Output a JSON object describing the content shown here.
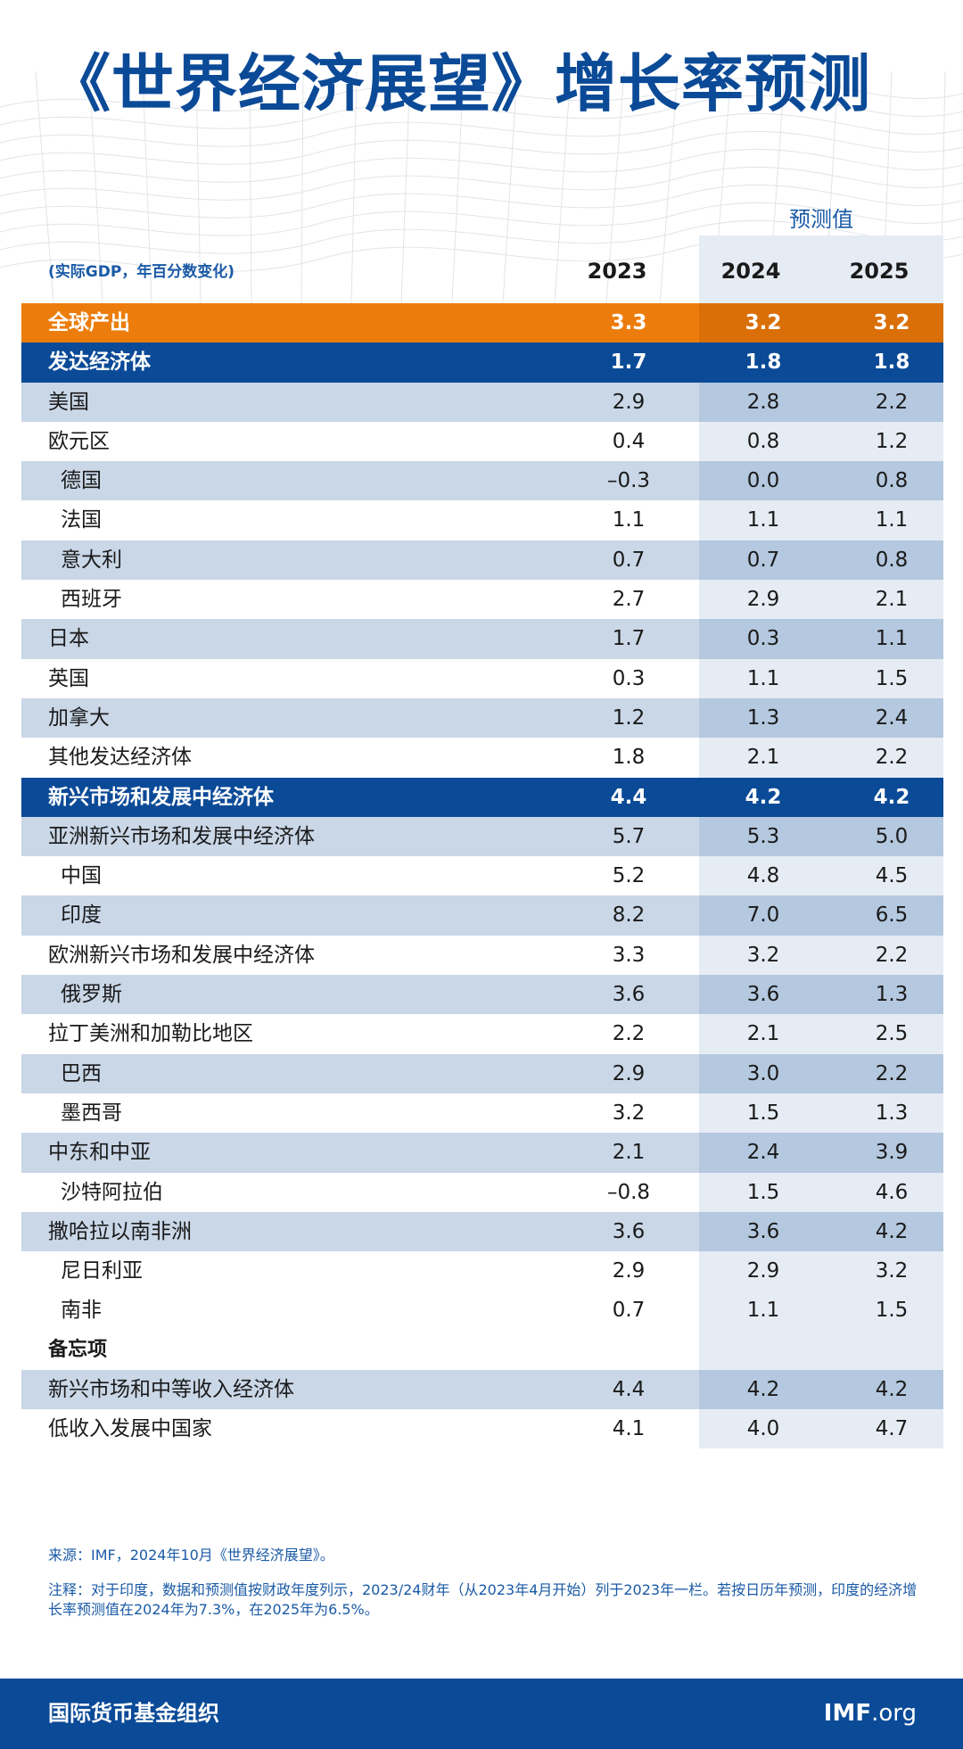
{
  "title": "《世界经济展望》增长率预测",
  "forecast_label": "预测值",
  "units_label": "(实际GDP，年百分数变化)",
  "years": [
    "2023",
    "2024",
    "2025"
  ],
  "rows": [
    {
      "name": "全球产出",
      "v2023": "3.3",
      "v2024": "3.2",
      "v2025": "3.2"
    },
    {
      "name": "发达经济体",
      "v2023": "1.7",
      "v2024": "1.8",
      "v2025": "1.8"
    },
    {
      "name": "美国",
      "v2023": "2.9",
      "v2024": "2.8",
      "v2025": "2.2"
    },
    {
      "name": "欧元区",
      "v2023": "0.4",
      "v2024": "0.8",
      "v2025": "1.2"
    },
    {
      "name": "德国",
      "v2023": "–0.3",
      "v2024": "0.0",
      "v2025": "0.8"
    },
    {
      "name": "法国",
      "v2023": "1.1",
      "v2024": "1.1",
      "v2025": "1.1"
    },
    {
      "name": "意大利",
      "v2023": "0.7",
      "v2024": "0.7",
      "v2025": "0.8"
    },
    {
      "name": "西班牙",
      "v2023": "2.7",
      "v2024": "2.9",
      "v2025": "2.1"
    },
    {
      "name": "日本",
      "v2023": "1.7",
      "v2024": "0.3",
      "v2025": "1.1"
    },
    {
      "name": "英国",
      "v2023": "0.3",
      "v2024": "1.1",
      "v2025": "1.5"
    },
    {
      "name": "加拿大",
      "v2023": "1.2",
      "v2024": "1.3",
      "v2025": "2.4"
    },
    {
      "name": "其他发达经济体",
      "v2023": "1.8",
      "v2024": "2.1",
      "v2025": "2.2"
    },
    {
      "name": "新兴市场和发展中经济体",
      "v2023": "4.4",
      "v2024": "4.2",
      "v2025": "4.2"
    },
    {
      "name": "亚洲新兴市场和发展中经济体",
      "v2023": "5.7",
      "v2024": "5.3",
      "v2025": "5.0"
    },
    {
      "name": "中国",
      "v2023": "5.2",
      "v2024": "4.8",
      "v2025": "4.5"
    },
    {
      "name": "印度",
      "v2023": "8.2",
      "v2024": "7.0",
      "v2025": "6.5"
    },
    {
      "name": "欧洲新兴市场和发展中经济体",
      "v2023": "3.3",
      "v2024": "3.2",
      "v2025": "2.2"
    },
    {
      "name": "俄罗斯",
      "v2023": "3.6",
      "v2024": "3.6",
      "v2025": "1.3"
    },
    {
      "name": "拉丁美洲和加勒比地区",
      "v2023": "2.2",
      "v2024": "2.1",
      "v2025": "2.5"
    },
    {
      "name": "巴西",
      "v2023": "2.9",
      "v2024": "3.0",
      "v2025": "2.2"
    },
    {
      "name": "墨西哥",
      "v2023": "3.2",
      "v2024": "1.5",
      "v2025": "1.3"
    },
    {
      "name": "中东和中亚",
      "v2023": "2.1",
      "v2024": "2.4",
      "v2025": "3.9"
    },
    {
      "name": "沙特阿拉伯",
      "v2023": "–0.8",
      "v2024": "1.5",
      "v2025": "4.6"
    },
    {
      "name": "撒哈拉以南非洲",
      "v2023": "3.6",
      "v2024": "3.6",
      "v2025": "4.2"
    },
    {
      "name": "尼日利亚",
      "v2023": "2.9",
      "v2024": "2.9",
      "v2025": "3.2"
    },
    {
      "name": "南非",
      "v2023": "0.7",
      "v2024": "1.1",
      "v2025": "1.5"
    },
    {
      "name": "备忘项",
      "v2023": "",
      "v2024": "",
      "v2025": ""
    },
    {
      "name": "新兴市场和中等收入经济体",
      "v2023": "4.4",
      "v2024": "4.2",
      "v2025": "4.2"
    },
    {
      "name": "低收入发展中国家",
      "v2023": "4.1",
      "v2024": "4.0",
      "v2025": "4.7"
    }
  ],
  "source": "来源：IMF，2024年10月《世界经济展望》。",
  "note": "注释：对于印度，数据和预测值按财政年度列示，2023/24财年（从2023年4月开始）列于2023年一栏。若按日历年预测，印度的经济增长率预测值在2024年为7.3%，在2025年为6.5%。",
  "footer": {
    "org": "国际货币基金组织",
    "logo_bold": "IMF",
    "logo_light": ".org"
  }
}
